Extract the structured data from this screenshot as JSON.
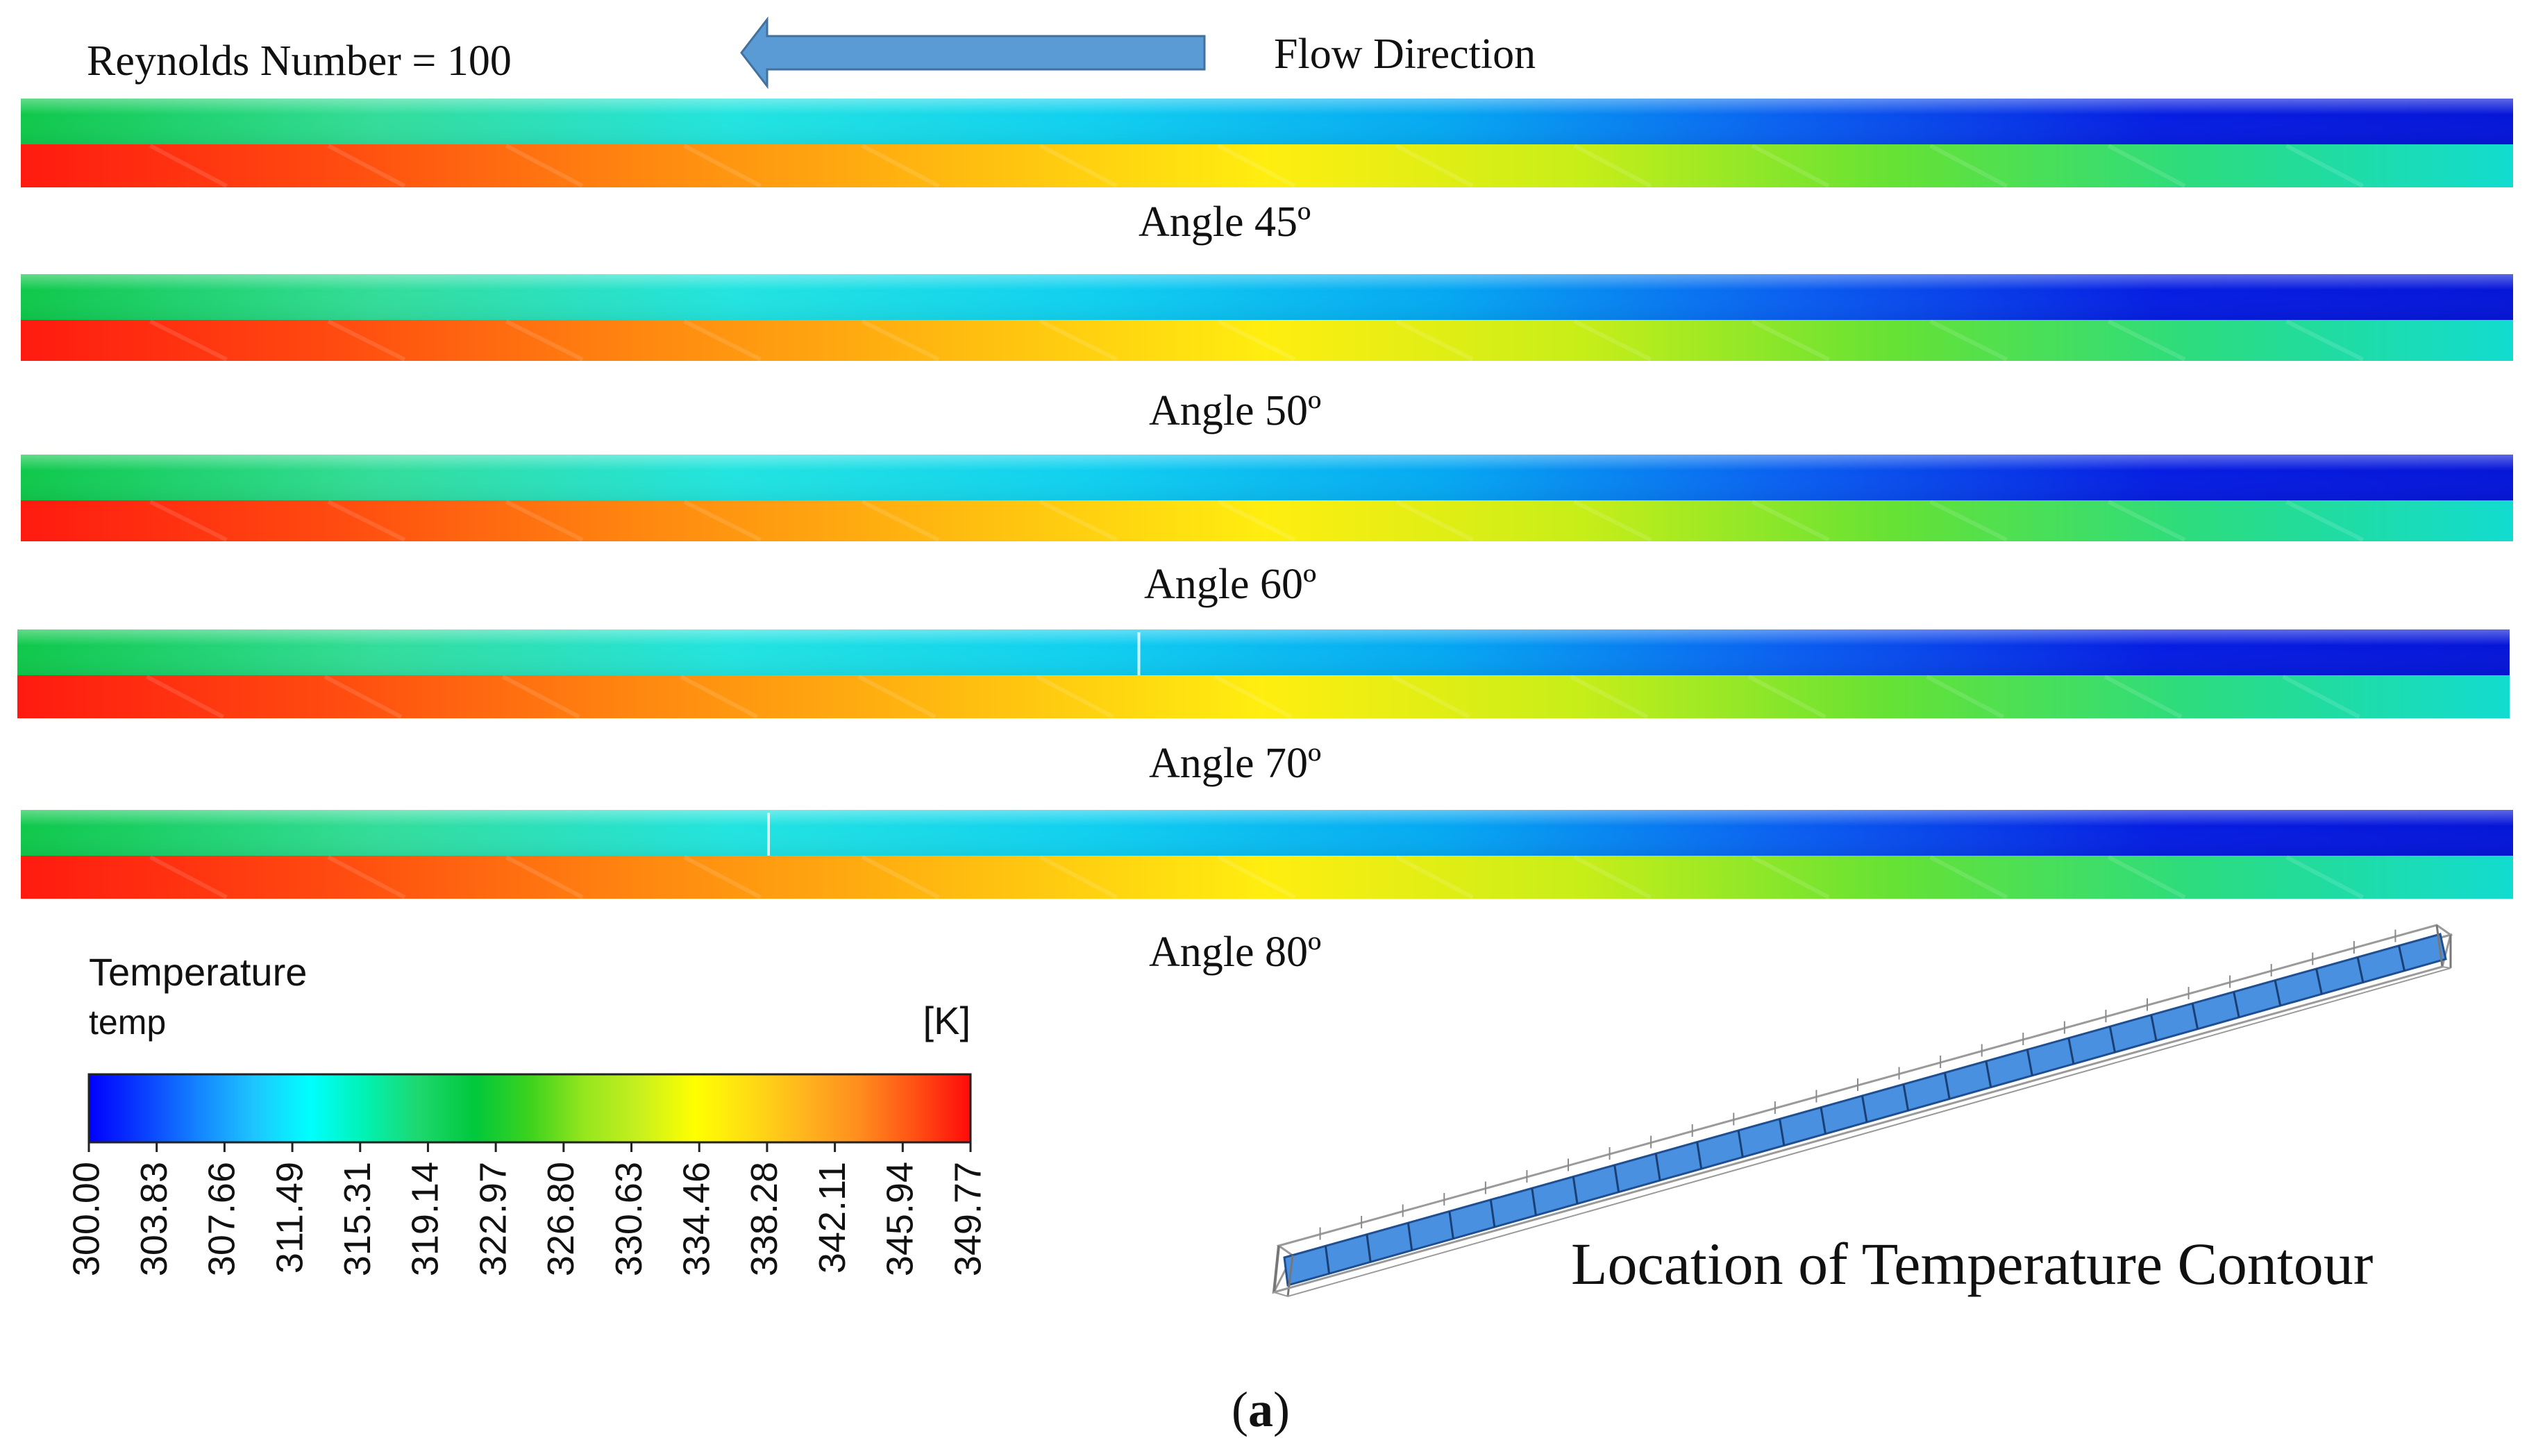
{
  "header": {
    "reynolds": "Reynolds Number = 100",
    "flow_direction": "Flow Direction"
  },
  "contours": [
    {
      "label": "Angle 45º",
      "seam": null
    },
    {
      "label": "Angle 50º",
      "seam": null
    },
    {
      "label": "Angle 60º",
      "seam": null
    },
    {
      "label": "Angle 70º",
      "seam": 0.45
    },
    {
      "label": "Angle 80º",
      "seam": 0.3
    }
  ],
  "legend": {
    "title": "Temperature",
    "variable": "temp",
    "unit": "[K]",
    "ticks": [
      "300.00",
      "303.83",
      "307.66",
      "311.49",
      "315.31",
      "319.14",
      "322.97",
      "326.80",
      "330.63",
      "334.46",
      "338.28",
      "342.11",
      "345.94",
      "349.77"
    ]
  },
  "location_label": "Location of Temperature Contour",
  "caption": {
    "open": "(",
    "letter": "a",
    "close": ")"
  },
  "colors": {
    "upper_band": [
      "#0fc84a",
      "#33dd99",
      "#22e4e0",
      "#10d0f0",
      "#05a8f2",
      "#0a5df0",
      "#061ee2",
      "#0616d8"
    ],
    "lower_band": [
      "#ff1a10",
      "#ff4a10",
      "#ff8810",
      "#ffbb10",
      "#ffee10",
      "#c8ee18",
      "#66e234",
      "#2bdc80",
      "#12dcd0"
    ],
    "colormap": [
      "#0000ff",
      "#0a3fff",
      "#1485ff",
      "#1ec5ff",
      "#00ffff",
      "#00f2b4",
      "#1ed76e",
      "#00c83c",
      "#3cd21e",
      "#96e61e",
      "#c8f01e",
      "#ffff00",
      "#ffdc14",
      "#ffb41e",
      "#ff8c1e",
      "#ff5014",
      "#ff0a0a"
    ],
    "duct_fill": "#4a90e0",
    "arrow": "#5b9bd5"
  }
}
